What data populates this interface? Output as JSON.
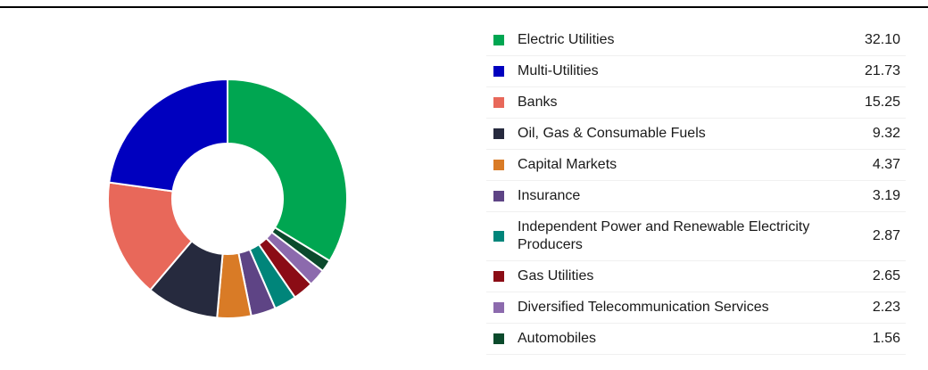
{
  "chart_data": {
    "type": "pie",
    "categories": [
      "Electric Utilities",
      "Multi-Utilities",
      "Banks",
      "Oil, Gas & Consumable Fuels",
      "Capital Markets",
      "Insurance",
      "Independent Power and Renewable Electricity Producers",
      "Gas Utilities",
      "Diversified Telecommunication Services",
      "Automobiles"
    ],
    "values": [
      32.1,
      21.73,
      15.25,
      9.32,
      4.37,
      3.19,
      2.87,
      2.65,
      2.23,
      1.56
    ],
    "value_labels": [
      "32.10",
      "21.73",
      "15.25",
      "9.32",
      "4.37",
      "3.19",
      "2.87",
      "2.65",
      "2.23",
      "1.56"
    ],
    "colors": [
      "#00a651",
      "#0000bf",
      "#e8685a",
      "#262a3e",
      "#d97b26",
      "#5e4485",
      "#00857a",
      "#8b0c15",
      "#8c6aad",
      "#0b4a2c"
    ]
  }
}
